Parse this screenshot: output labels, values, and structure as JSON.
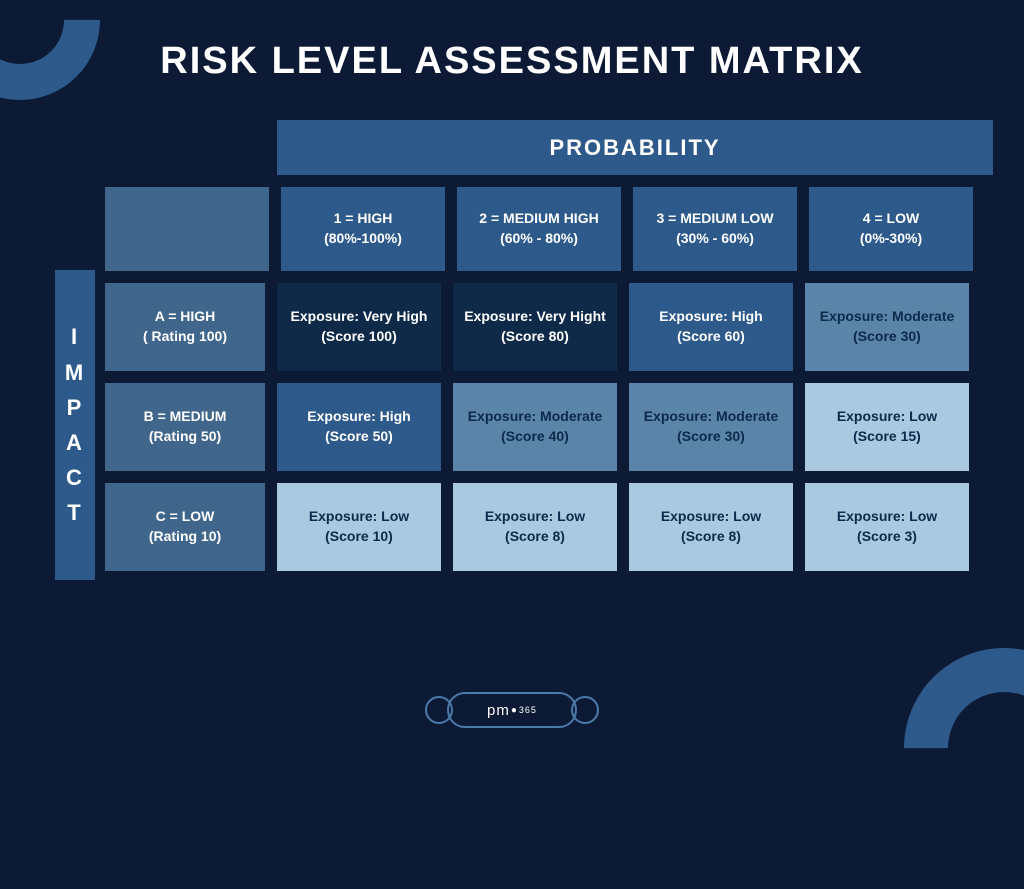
{
  "title": "RISK LEVEL ASSESSMENT MATRIX",
  "axis": {
    "probability": "PROBABILITY",
    "impact": "IMPACT"
  },
  "colors": {
    "background": "#0c1a36",
    "header_bg": "#2d5a8a",
    "rowlabel_bg": "#40668c",
    "text_light": "#ffffff",
    "text_dark": "#0c2a4a",
    "very_high": "#0f2a48",
    "high": "#2d5a8a",
    "moderate": "#5a84a8",
    "low": "#aac8e0"
  },
  "prob_cols": [
    {
      "line1": "1 = HIGH",
      "line2": "(80%-100%)"
    },
    {
      "line1": "2 = MEDIUM HIGH",
      "line2": "(60% - 80%)"
    },
    {
      "line1": "3 = MEDIUM LOW",
      "line2": "(30% - 60%)"
    },
    {
      "line1": "4 = LOW",
      "line2": "(0%-30%)"
    }
  ],
  "impact_rows": [
    {
      "line1": "A = HIGH",
      "line2": "( Rating 100)"
    },
    {
      "line1": "B = MEDIUM",
      "line2": "(Rating 50)"
    },
    {
      "line1": "C = LOW",
      "line2": "(Rating 10)"
    }
  ],
  "cells": [
    [
      {
        "l1": "Exposure: Very High",
        "l2": "(Score 100)",
        "bg": "#0f2a48",
        "fg": "#ffffff"
      },
      {
        "l1": "Exposure: Very Hight",
        "l2": "(Score 80)",
        "bg": "#0f2a48",
        "fg": "#ffffff"
      },
      {
        "l1": "Exposure: High",
        "l2": "(Score 60)",
        "bg": "#2d5a8a",
        "fg": "#ffffff"
      },
      {
        "l1": "Exposure: Moderate",
        "l2": "(Score 30)",
        "bg": "#5a84a8",
        "fg": "#0c2a4a"
      }
    ],
    [
      {
        "l1": "Exposure: High",
        "l2": "(Score 50)",
        "bg": "#2d5a8a",
        "fg": "#ffffff"
      },
      {
        "l1": "Exposure: Moderate",
        "l2": "(Score 40)",
        "bg": "#5a84a8",
        "fg": "#0c2a4a"
      },
      {
        "l1": "Exposure: Moderate",
        "l2": "(Score 30)",
        "bg": "#5a84a8",
        "fg": "#0c2a4a"
      },
      {
        "l1": "Exposure: Low",
        "l2": "(Score 15)",
        "bg": "#aac8e0",
        "fg": "#0c2a4a"
      }
    ],
    [
      {
        "l1": "Exposure: Low",
        "l2": "(Score 10)",
        "bg": "#aac8e0",
        "fg": "#0c2a4a"
      },
      {
        "l1": "Exposure: Low",
        "l2": "(Score 8)",
        "bg": "#aac8e0",
        "fg": "#0c2a4a"
      },
      {
        "l1": "Exposure: Low",
        "l2": "(Score 8)",
        "bg": "#aac8e0",
        "fg": "#0c2a4a"
      },
      {
        "l1": "Exposure: Low",
        "l2": "(Score 3)",
        "bg": "#aac8e0",
        "fg": "#0c2a4a"
      }
    ]
  ],
  "footer": {
    "brand": "pm",
    "dot": "●",
    "suffix": "365"
  }
}
